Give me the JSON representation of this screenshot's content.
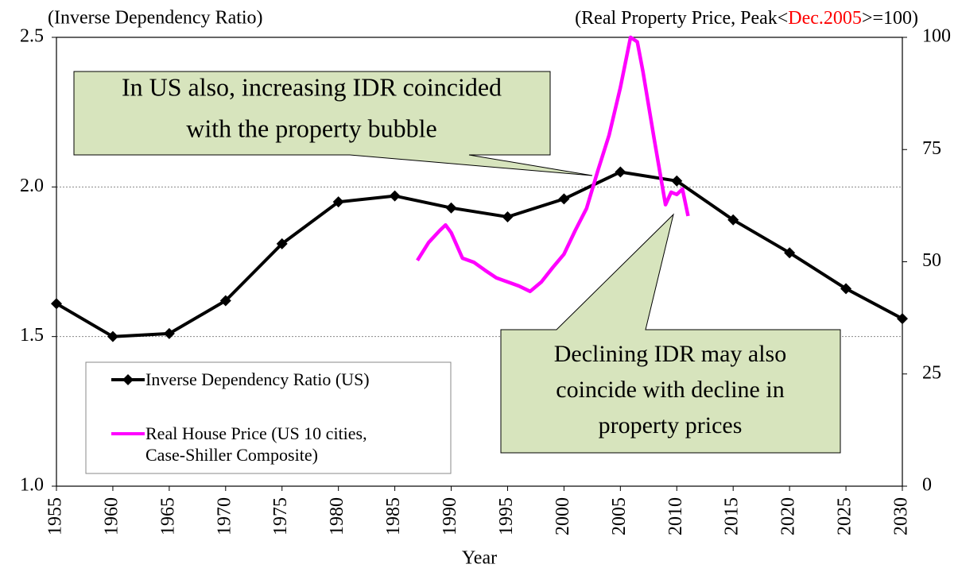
{
  "chart_data": {
    "type": "line",
    "y_axis_title": "(Inverse Dependency Ratio)",
    "y2_axis_title": {
      "prefix": "(Real Property Price, Peak<",
      "highlight": "Dec.2005",
      "suffix": ">=100)",
      "highlight_color": "#ff0000"
    },
    "x_axis_title": "Year",
    "xlim": [
      1955,
      2030
    ],
    "xticks": [
      1955,
      1960,
      1965,
      1970,
      1975,
      1980,
      1985,
      1990,
      1995,
      2000,
      2005,
      2010,
      2015,
      2020,
      2025,
      2030
    ],
    "ylim": [
      1,
      2.5
    ],
    "yticks": [
      {
        "value": 1,
        "label": "1.0"
      },
      1.5,
      {
        "value": 2,
        "label": "2.0"
      },
      2.5
    ],
    "y2lim": [
      0,
      100
    ],
    "y2ticks": [
      0,
      25,
      50,
      75,
      100
    ],
    "grid": true,
    "legend": "lower left",
    "series": [
      {
        "name": "Inverse Dependency Ratio (US)",
        "color": "#000000",
        "marker": "diamond",
        "x": [
          1955,
          1960,
          1965,
          1970,
          1975,
          1980,
          1985,
          1990,
          1995,
          2000,
          2005,
          2010,
          2015,
          2020,
          2025,
          2030
        ],
        "values": [
          1.61,
          1.5,
          1.51,
          1.62,
          1.81,
          1.95,
          1.97,
          1.93,
          1.9,
          1.96,
          2.05,
          2.02,
          1.89,
          1.78,
          1.66,
          1.56
        ]
      },
      {
        "name": "Real House Price (US 10 cities, Case-Shiller Composite)",
        "color": "#ff00ff",
        "axis": "y2",
        "x": [
          1987,
          1988,
          1989,
          1989.5,
          1990,
          1991,
          1992,
          1993,
          1994,
          1995,
          1996,
          1997,
          1998,
          1999,
          2000,
          2001,
          2002,
          2003,
          2004,
          2005,
          2005.9,
          2006.5,
          2007,
          2008,
          2009,
          2009.5,
          2010,
          2010.5,
          2011
        ],
        "values": [
          50.3,
          54.3,
          57,
          58.2,
          56.5,
          50.8,
          49.9,
          48.1,
          46.4,
          45.5,
          44.6,
          43.4,
          45.5,
          48.7,
          51.7,
          57,
          61.9,
          70.3,
          78.2,
          88.8,
          100,
          99,
          92.4,
          77.3,
          62.7,
          65.5,
          65,
          66.2,
          60.2
        ]
      }
    ],
    "annotations": [
      {
        "lines": [
          "In US also, increasing IDR coincided",
          "with the property bubble"
        ]
      },
      {
        "lines": [
          "Declining IDR may also",
          "coincide with decline in",
          "property prices"
        ]
      }
    ]
  }
}
